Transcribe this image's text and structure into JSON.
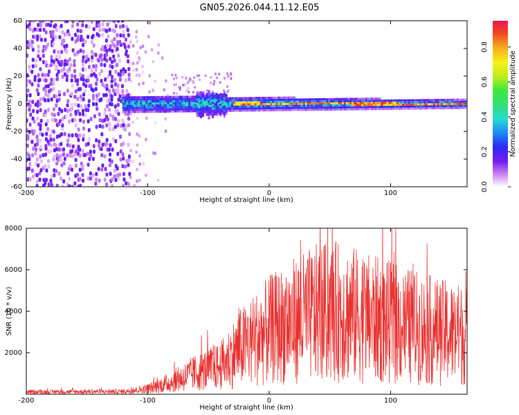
{
  "title": "GN05.2026.044.11.12.E05",
  "chart_data": [
    {
      "type": "heatmap",
      "name": "spectrogram",
      "xlabel": "Height of straight line (km)",
      "ylabel": "Frequency (Hz)",
      "xlim": [
        -200,
        163
      ],
      "ylim": [
        -60,
        60
      ],
      "xticks": [
        -200,
        -100,
        0,
        100
      ],
      "yticks": [
        60,
        40,
        20,
        0,
        -20,
        -40,
        -60
      ],
      "colorbar": {
        "label": "Normalized spectral amplitude",
        "range": [
          0,
          0.95
        ],
        "ticks": [
          0.0,
          0.2,
          0.4,
          0.6,
          0.8
        ],
        "tick_labels": [
          "0.0",
          "0.2",
          "0.4",
          "0.6",
          "0.8"
        ]
      },
      "regions": [
        {
          "name": "broadband noise",
          "x_range": [
            -200,
            -115
          ],
          "freq_range": [
            -60,
            60
          ],
          "amplitude": 0.15
        },
        {
          "name": "scattered noise",
          "x_range": [
            -115,
            -85
          ],
          "freq_range": [
            -60,
            60
          ],
          "amplitude": 0.05
        },
        {
          "name": "signal band",
          "x_range": [
            -120,
            163
          ],
          "center_freq": 0,
          "half_width_hz": [
            6,
            3
          ],
          "peak_amplitude": 0.9
        }
      ]
    },
    {
      "type": "line",
      "name": "snr",
      "xlabel": "Height of straight line (km)",
      "ylabel": "SNR (10 * v/v)",
      "xlim": [
        -200,
        163
      ],
      "ylim": [
        0,
        8000
      ],
      "xticks": [
        -200,
        -100,
        0,
        100
      ],
      "yticks": [
        2000,
        4000,
        6000,
        8000
      ],
      "color": "#e8302e",
      "envelope": {
        "x": [
          -200,
          -120,
          -100,
          -80,
          -60,
          -40,
          -25,
          -10,
          0,
          20,
          40,
          60,
          80,
          100,
          120,
          140,
          150,
          163
        ],
        "y": [
          150,
          180,
          350,
          800,
          1400,
          1800,
          2900,
          3600,
          4100,
          4700,
          5200,
          5300,
          4900,
          4600,
          4300,
          4000,
          3900,
          3800
        ]
      }
    }
  ]
}
